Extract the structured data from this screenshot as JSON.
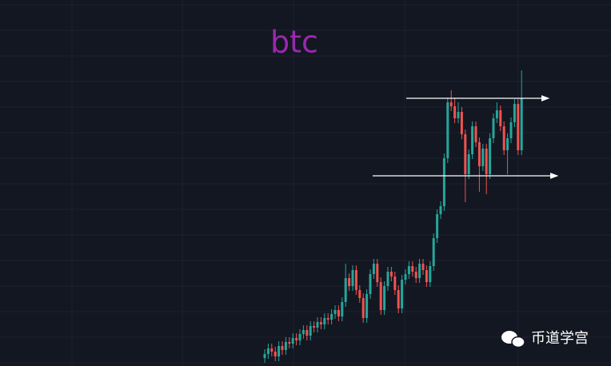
{
  "chart_data": {
    "type": "candlestick",
    "title": "btc",
    "title_color": "#9c27b0",
    "watermark": "币道学宫",
    "up_color": "#26a69a",
    "down_color": "#ef5350",
    "ylim": [
      0,
      458
    ],
    "open": [
      10,
      15,
      22,
      18,
      12,
      25,
      20,
      30,
      28,
      35,
      32,
      40,
      45,
      38,
      50,
      48,
      55,
      52,
      60,
      58,
      65,
      70,
      62,
      80,
      110,
      100,
      120,
      95,
      85,
      60,
      90,
      115,
      128,
      105,
      70,
      100,
      118,
      112,
      95,
      72,
      108,
      115,
      125,
      118,
      110,
      128,
      120,
      105,
      125,
      160,
      190,
      200,
      260,
      330,
      325,
      310,
      318,
      290,
      240,
      265,
      300,
      280,
      250,
      272,
      240,
      285,
      310,
      320,
      300,
      270,
      285,
      305,
      328,
      270
    ],
    "high": [
      21,
      28,
      28,
      24,
      31,
      31,
      36,
      36,
      41,
      41,
      46,
      51,
      51,
      56,
      56,
      61,
      61,
      66,
      66,
      71,
      76,
      76,
      86,
      128,
      116,
      126,
      126,
      101,
      91,
      96,
      121,
      134,
      134,
      111,
      106,
      124,
      124,
      118,
      101,
      114,
      121,
      131,
      131,
      124,
      134,
      134,
      126,
      131,
      166,
      196,
      206,
      266,
      336,
      345,
      336,
      330,
      324,
      296,
      271,
      306,
      306,
      286,
      278,
      278,
      291,
      316,
      330,
      326,
      306,
      291,
      311,
      334,
      334,
      370
    ],
    "low": [
      4,
      9,
      12,
      6,
      6,
      14,
      14,
      22,
      22,
      26,
      26,
      34,
      32,
      32,
      42,
      42,
      46,
      46,
      52,
      52,
      59,
      56,
      56,
      74,
      94,
      94,
      89,
      79,
      54,
      54,
      84,
      109,
      99,
      64,
      64,
      94,
      106,
      89,
      66,
      66,
      102,
      109,
      112,
      104,
      104,
      114,
      99,
      99,
      119,
      154,
      184,
      194,
      254,
      319,
      304,
      304,
      284,
      205,
      234,
      259,
      274,
      218,
      244,
      215,
      234,
      279,
      304,
      294,
      264,
      240,
      279,
      299,
      264,
      264
    ],
    "close": [
      15,
      22,
      18,
      12,
      25,
      20,
      30,
      28,
      35,
      32,
      40,
      45,
      38,
      50,
      48,
      55,
      52,
      60,
      58,
      65,
      70,
      62,
      80,
      110,
      100,
      120,
      95,
      85,
      60,
      90,
      115,
      128,
      105,
      70,
      100,
      118,
      112,
      95,
      72,
      108,
      115,
      125,
      118,
      110,
      128,
      120,
      105,
      125,
      160,
      190,
      200,
      260,
      330,
      325,
      310,
      318,
      290,
      240,
      265,
      300,
      280,
      250,
      272,
      240,
      285,
      310,
      320,
      300,
      270,
      285,
      305,
      328,
      270,
      335
    ],
    "hlines": [
      335,
      238
    ],
    "hline_color": "#ffffff"
  }
}
